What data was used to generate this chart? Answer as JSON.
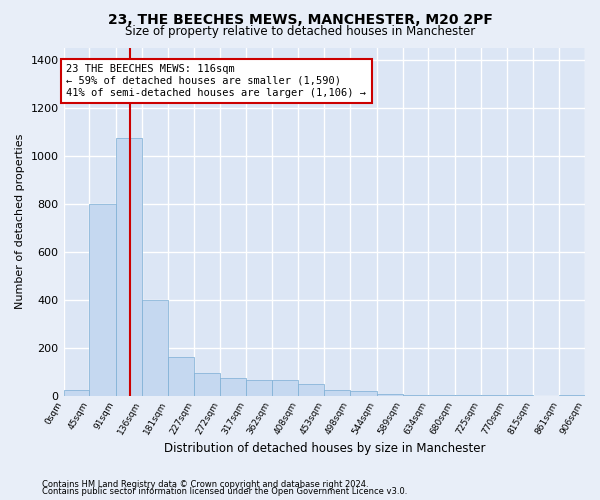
{
  "title1": "23, THE BEECHES MEWS, MANCHESTER, M20 2PF",
  "title2": "Size of property relative to detached houses in Manchester",
  "xlabel": "Distribution of detached houses by size in Manchester",
  "ylabel": "Number of detached properties",
  "bar_color": "#c5d8f0",
  "bar_edge_color": "#7aadd4",
  "annotation_line_color": "#cc0000",
  "annotation_box_color": "#cc0000",
  "bin_edges": [
    0,
    45,
    91,
    136,
    181,
    227,
    272,
    317,
    362,
    408,
    453,
    498,
    544,
    589,
    634,
    680,
    725,
    770,
    815,
    861,
    906
  ],
  "bar_heights": [
    25,
    800,
    1075,
    400,
    160,
    95,
    75,
    65,
    65,
    50,
    25,
    20,
    8,
    4,
    4,
    2,
    1,
    1,
    0,
    1
  ],
  "property_size": 116,
  "annotation_line1": "23 THE BEECHES MEWS: 116sqm",
  "annotation_line2": "← 59% of detached houses are smaller (1,590)",
  "annotation_line3": "41% of semi-detached houses are larger (1,106) →",
  "ylim": [
    0,
    1450
  ],
  "yticks": [
    0,
    200,
    400,
    600,
    800,
    1000,
    1200,
    1400
  ],
  "footnote1": "Contains HM Land Registry data © Crown copyright and database right 2024.",
  "footnote2": "Contains public sector information licensed under the Open Government Licence v3.0.",
  "bg_color": "#e8eef8",
  "plot_bg_color": "#dce6f5",
  "grid_color": "#ffffff",
  "title_fontsize": 10,
  "subtitle_fontsize": 8.5,
  "ylabel_fontsize": 8,
  "xlabel_fontsize": 8.5,
  "xtick_fontsize": 6.5,
  "ytick_fontsize": 8
}
